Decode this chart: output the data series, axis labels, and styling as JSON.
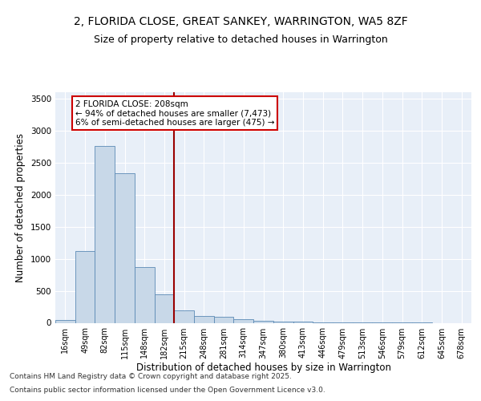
{
  "title_line1": "2, FLORIDA CLOSE, GREAT SANKEY, WARRINGTON, WA5 8ZF",
  "title_line2": "Size of property relative to detached houses in Warrington",
  "xlabel": "Distribution of detached houses by size in Warrington",
  "ylabel": "Number of detached properties",
  "categories": [
    "16sqm",
    "49sqm",
    "82sqm",
    "115sqm",
    "148sqm",
    "182sqm",
    "215sqm",
    "248sqm",
    "281sqm",
    "314sqm",
    "347sqm",
    "380sqm",
    "413sqm",
    "446sqm",
    "479sqm",
    "513sqm",
    "546sqm",
    "579sqm",
    "612sqm",
    "645sqm",
    "678sqm"
  ],
  "values": [
    50,
    1120,
    2760,
    2330,
    870,
    440,
    200,
    110,
    90,
    60,
    35,
    25,
    15,
    10,
    5,
    3,
    2,
    1,
    1,
    0,
    0
  ],
  "bar_color": "#c8d8e8",
  "bar_edgecolor": "#5b8ab5",
  "vline_color": "#990000",
  "annotation_text": "2 FLORIDA CLOSE: 208sqm\n← 94% of detached houses are smaller (7,473)\n6% of semi-detached houses are larger (475) →",
  "annotation_box_edgecolor": "#cc0000",
  "ylim": [
    0,
    3600
  ],
  "yticks": [
    0,
    500,
    1000,
    1500,
    2000,
    2500,
    3000,
    3500
  ],
  "bg_color": "#e8eff8",
  "grid_color": "#ffffff",
  "footnote1": "Contains HM Land Registry data © Crown copyright and database right 2025.",
  "footnote2": "Contains public sector information licensed under the Open Government Licence v3.0.",
  "title_fontsize": 10,
  "subtitle_fontsize": 9,
  "tick_fontsize": 7,
  "label_fontsize": 8.5,
  "annot_fontsize": 7.5,
  "footnote_fontsize": 6.5
}
